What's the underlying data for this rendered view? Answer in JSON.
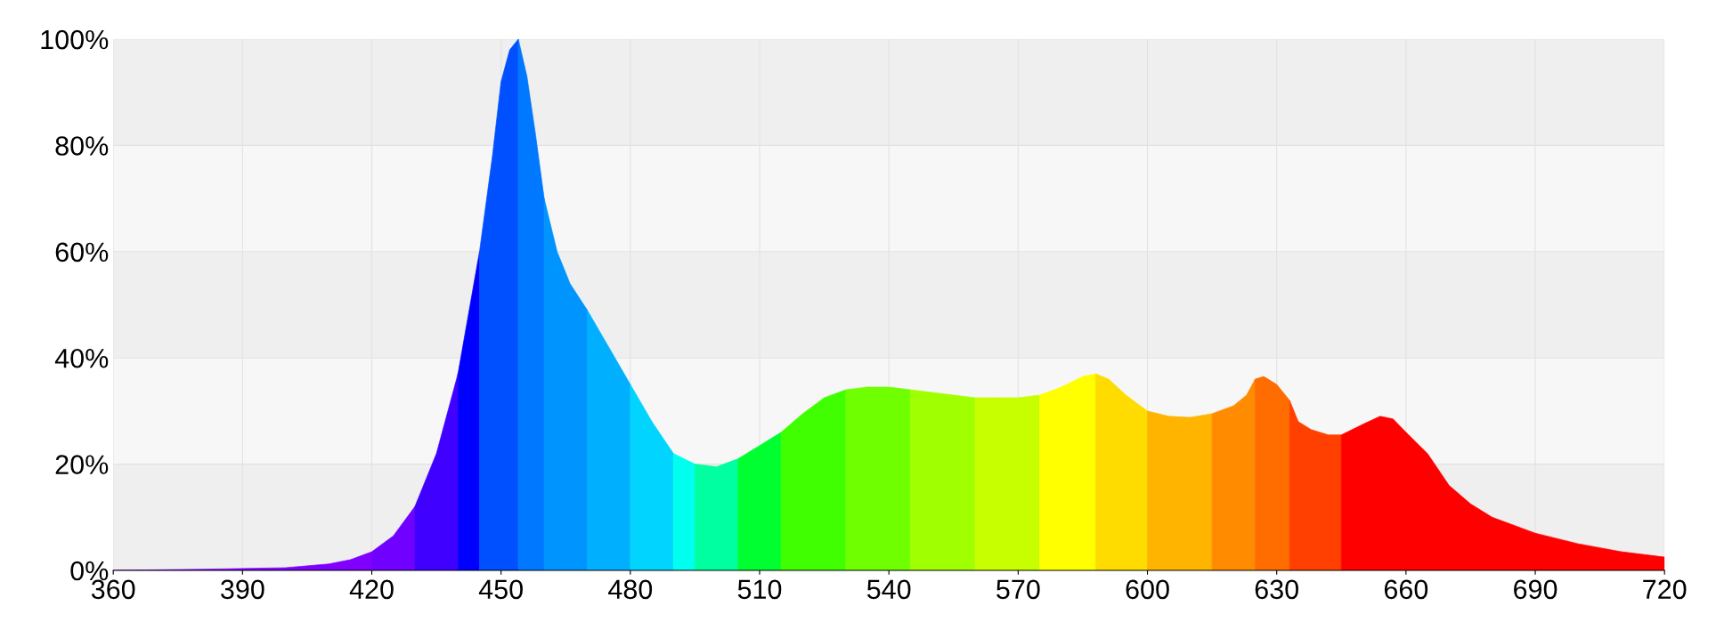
{
  "chart_data": {
    "type": "area",
    "xlim": [
      360,
      720
    ],
    "xticks": [
      360,
      390,
      420,
      450,
      480,
      510,
      540,
      570,
      600,
      630,
      660,
      690,
      720
    ],
    "ylim": [
      0,
      100
    ],
    "yticks": [
      {
        "value": 0,
        "label": "0%"
      },
      {
        "value": 20,
        "label": "20%"
      },
      {
        "value": 40,
        "label": "40%"
      },
      {
        "value": 60,
        "label": "60%"
      },
      {
        "value": 80,
        "label": "80%"
      },
      {
        "value": 100,
        "label": "100%"
      }
    ],
    "grid": true,
    "series": [
      {
        "color": "#8000ff",
        "x": [
          360,
          380,
          400,
          410,
          415,
          420
        ],
        "values": [
          0,
          0.2,
          0.5,
          1.2,
          2,
          3.5
        ]
      },
      {
        "color": "#7000ff",
        "x": [
          420,
          425,
          430
        ],
        "values": [
          3.5,
          6.5,
          12
        ]
      },
      {
        "color": "#4000ff",
        "x": [
          430,
          435,
          440
        ],
        "values": [
          12,
          22,
          37
        ]
      },
      {
        "color": "#0000ff",
        "x": [
          440,
          445
        ],
        "values": [
          37,
          60
        ]
      },
      {
        "color": "#0050ff",
        "x": [
          445,
          448,
          450,
          452,
          454
        ],
        "values": [
          60,
          78,
          92,
          98,
          100
        ]
      },
      {
        "color": "#0078ff",
        "x": [
          454,
          456,
          458,
          460
        ],
        "values": [
          100,
          93,
          82,
          70
        ]
      },
      {
        "color": "#0094ff",
        "x": [
          460,
          463,
          466,
          470
        ],
        "values": [
          70,
          60,
          54,
          49
        ]
      },
      {
        "color": "#00b0ff",
        "x": [
          470,
          475,
          480
        ],
        "values": [
          49,
          42,
          35
        ]
      },
      {
        "color": "#00d4ff",
        "x": [
          480,
          485,
          490
        ],
        "values": [
          35,
          28,
          22
        ]
      },
      {
        "color": "#00ffee",
        "x": [
          490,
          495
        ],
        "values": [
          22,
          20
        ]
      },
      {
        "color": "#00ffa0",
        "x": [
          495,
          500,
          505
        ],
        "values": [
          20,
          19.5,
          21
        ]
      },
      {
        "color": "#00ff30",
        "x": [
          505,
          510,
          515
        ],
        "values": [
          21,
          23.5,
          26
        ]
      },
      {
        "color": "#40ff00",
        "x": [
          515,
          520,
          525,
          530
        ],
        "values": [
          26,
          29.5,
          32.5,
          34
        ]
      },
      {
        "color": "#70ff00",
        "x": [
          530,
          535,
          540,
          545
        ],
        "values": [
          34,
          34.5,
          34.5,
          34
        ]
      },
      {
        "color": "#a0ff00",
        "x": [
          545,
          550,
          555,
          560
        ],
        "values": [
          34,
          33.5,
          33,
          32.5
        ]
      },
      {
        "color": "#c8ff00",
        "x": [
          560,
          565,
          570,
          575
        ],
        "values": [
          32.5,
          32.5,
          32.5,
          33
        ]
      },
      {
        "color": "#ffff00",
        "x": [
          575,
          580,
          585,
          588
        ],
        "values": [
          33,
          34.5,
          36.5,
          37
        ]
      },
      {
        "color": "#ffdc00",
        "x": [
          588,
          591,
          595,
          600
        ],
        "values": [
          37,
          36,
          33,
          30
        ]
      },
      {
        "color": "#ffb400",
        "x": [
          600,
          605,
          610,
          615
        ],
        "values": [
          30,
          29,
          28.8,
          29.5
        ]
      },
      {
        "color": "#ff8c00",
        "x": [
          615,
          620,
          623,
          625
        ],
        "values": [
          29.5,
          31,
          33,
          36
        ]
      },
      {
        "color": "#ff6c00",
        "x": [
          625,
          627,
          630,
          633
        ],
        "values": [
          36,
          36.5,
          35,
          32
        ]
      },
      {
        "color": "#ff4000",
        "x": [
          633,
          635,
          638,
          642,
          645
        ],
        "values": [
          32,
          28,
          26.5,
          25.5,
          25.5
        ]
      },
      {
        "color": "#ff0000",
        "x": [
          645,
          650,
          654,
          657,
          660,
          665,
          670,
          675,
          680,
          690,
          700,
          710,
          720
        ],
        "values": [
          25.5,
          27.5,
          29,
          28.5,
          26,
          22,
          16,
          12.5,
          10,
          7,
          5,
          3.5,
          2.5
        ]
      }
    ]
  }
}
